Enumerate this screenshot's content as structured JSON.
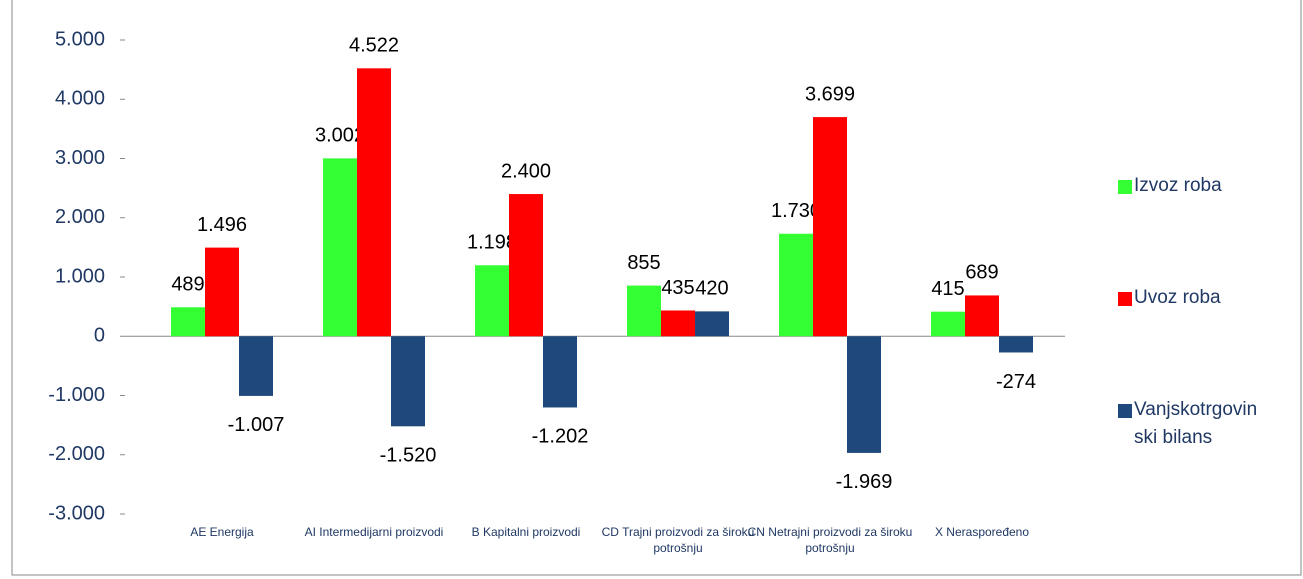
{
  "chart_data": {
    "type": "bar",
    "categories": [
      "AE Energija",
      "AI Intermedijarni proizvodi",
      "B Kapitalni proizvodi",
      "CD Trajni proizvodi za široku potrošnju",
      "CN Netrajni proizvodi za široku potrošnju",
      "X Neraspoređeno"
    ],
    "series": [
      {
        "name": "Izvoz roba",
        "color": "#33ff33",
        "values": [
          489,
          3002,
          1198,
          855,
          1730,
          415
        ],
        "value_labels": [
          "489",
          "3.002",
          "1.198",
          "855",
          "1.730",
          "415"
        ]
      },
      {
        "name": "Uvoz roba",
        "color": "#ff0000",
        "values": [
          1496,
          4522,
          2400,
          435,
          3699,
          689
        ],
        "value_labels": [
          "1.496",
          "4.522",
          "2.400",
          "435",
          "3.699",
          "689"
        ]
      },
      {
        "name": "Vanjskotrgovinski bilans",
        "color": "#1f497d",
        "values": [
          -1007,
          -1520,
          -1202,
          420,
          -1969,
          -274
        ],
        "value_labels": [
          "-1.007",
          "-1.520",
          "-1.202",
          "420",
          "-1.969",
          "-274"
        ]
      }
    ],
    "ylim": [
      -3000,
      5000
    ],
    "yticks": [
      {
        "value": -3000,
        "label": "-3.000"
      },
      {
        "value": -2000,
        "label": "-2.000"
      },
      {
        "value": -1000,
        "label": "-1.000"
      },
      0,
      {
        "value": 1000,
        "label": "1.000"
      },
      {
        "value": 2000,
        "label": "2.000"
      },
      {
        "value": 3000,
        "label": "3.000"
      },
      {
        "value": 4000,
        "label": "4.000"
      },
      {
        "value": 5000,
        "label": "5.000"
      }
    ],
    "legend": "right"
  }
}
